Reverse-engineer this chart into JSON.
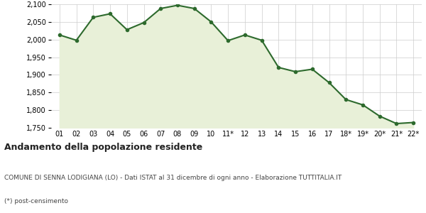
{
  "x_labels": [
    "01",
    "02",
    "03",
    "04",
    "05",
    "06",
    "07",
    "08",
    "09",
    "10",
    "11*",
    "12",
    "13",
    "14",
    "15",
    "16",
    "17",
    "18*",
    "19*",
    "20*",
    "21*",
    "22*"
  ],
  "y_values": [
    2013,
    1998,
    2063,
    2073,
    2028,
    2048,
    2088,
    2097,
    2088,
    2050,
    1997,
    2013,
    1998,
    1921,
    1909,
    1916,
    1878,
    1830,
    1815,
    1783,
    1762,
    1765
  ],
  "line_color": "#2d6a2d",
  "fill_color": "#e8f0d8",
  "marker": "o",
  "marker_size": 3,
  "line_width": 1.5,
  "ylim": [
    1750,
    2100
  ],
  "yticks": [
    1750,
    1800,
    1850,
    1900,
    1950,
    2000,
    2050,
    2100
  ],
  "background_color": "#ffffff",
  "grid_color": "#cccccc",
  "title_main": "Andamento della popolazione residente",
  "title_sub1": "COMUNE DI SENNA LODIGIANA (LO) - Dati ISTAT al 31 dicembre di ogni anno - Elaborazione TUTTITALIA.IT",
  "title_sub2": "(*) post-censimento"
}
